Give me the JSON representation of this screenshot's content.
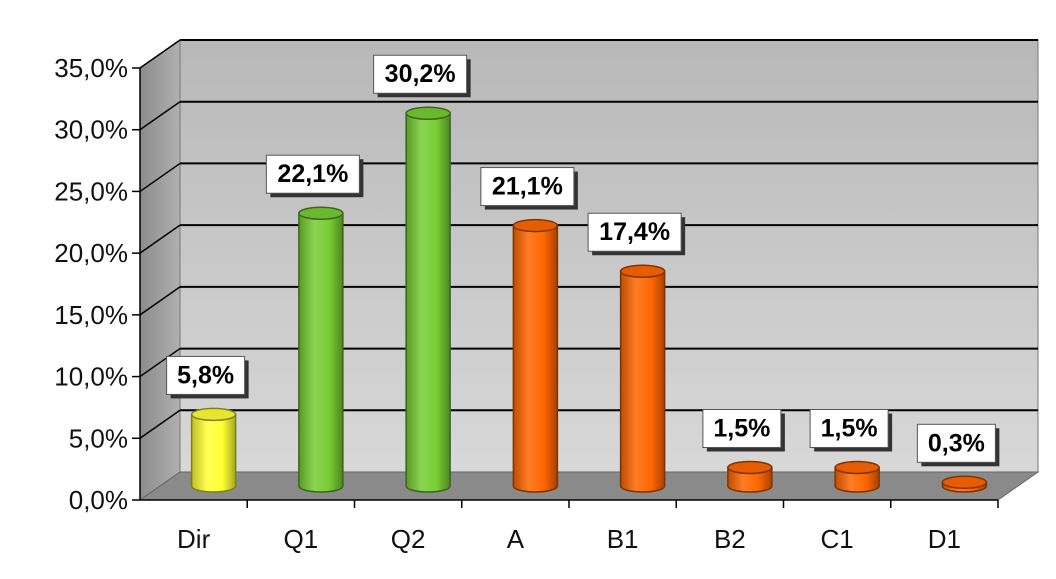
{
  "chart_data": {
    "type": "bar",
    "style": "3d-cylinder",
    "categories": [
      "Dir",
      "Q1",
      "Q2",
      "A",
      "B1",
      "B2",
      "C1",
      "D1"
    ],
    "values": [
      5.8,
      22.1,
      30.2,
      21.1,
      17.4,
      1.5,
      1.5,
      0.3
    ],
    "data_labels": [
      "5,8%",
      "22,1%",
      "30,2%",
      "21,1%",
      "17,4%",
      "1,5%",
      "1,5%",
      "0,3%"
    ],
    "bar_colors": [
      "#ffff33",
      "#77cc33",
      "#77cc33",
      "#ff6600",
      "#ff6600",
      "#ff6600",
      "#ff6600",
      "#ff6600"
    ],
    "y_ticks": [
      "0,0%",
      "5,0%",
      "10,0%",
      "15,0%",
      "20,0%",
      "25,0%",
      "30,0%",
      "35,0%"
    ],
    "ylim": [
      0,
      35
    ],
    "y_step": 5,
    "title": "",
    "xlabel": "",
    "ylabel": "",
    "grid": true,
    "legend": "none",
    "colors": {
      "wall": "#c8c8c8",
      "side_wall": "#9e9e9e",
      "floor": "#8a8a8a",
      "gridline": "#000000"
    }
  }
}
